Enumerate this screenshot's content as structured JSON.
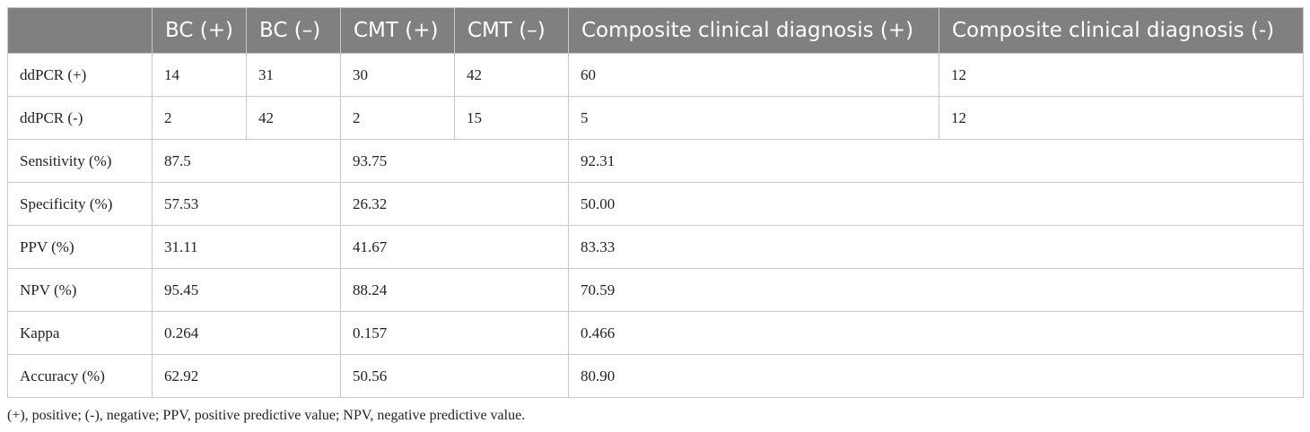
{
  "table": {
    "headers": [
      "",
      "BC (+)",
      "BC (–)",
      "CMT (+)",
      "CMT (–)",
      "Composite clinical diagnosis (+)",
      "Composite clinical diagnosis (-)"
    ],
    "count_rows": [
      {
        "label": "ddPCR (+)",
        "values": [
          "14",
          "31",
          "30",
          "42",
          "60",
          "12"
        ]
      },
      {
        "label": "ddPCR (-)",
        "values": [
          "2",
          "42",
          "2",
          "15",
          "5",
          "12"
        ]
      }
    ],
    "metric_rows": [
      {
        "label": "Sensitivity (%)",
        "values": [
          "87.5",
          "93.75",
          "92.31"
        ]
      },
      {
        "label": "Specificity (%)",
        "values": [
          "57.53",
          "26.32",
          "50.00"
        ]
      },
      {
        "label": "PPV (%)",
        "values": [
          "31.11",
          "41.67",
          "83.33"
        ]
      },
      {
        "label": "NPV (%)",
        "values": [
          "95.45",
          "88.24",
          "70.59"
        ]
      },
      {
        "label": "Kappa",
        "values": [
          "0.264",
          "0.157",
          "0.466"
        ]
      },
      {
        "label": "Accuracy (%)",
        "values": [
          "62.92",
          "50.56",
          "80.90"
        ]
      }
    ]
  },
  "footnote": "(+), positive; (-), negative; PPV, positive predictive value; NPV, negative predictive value."
}
